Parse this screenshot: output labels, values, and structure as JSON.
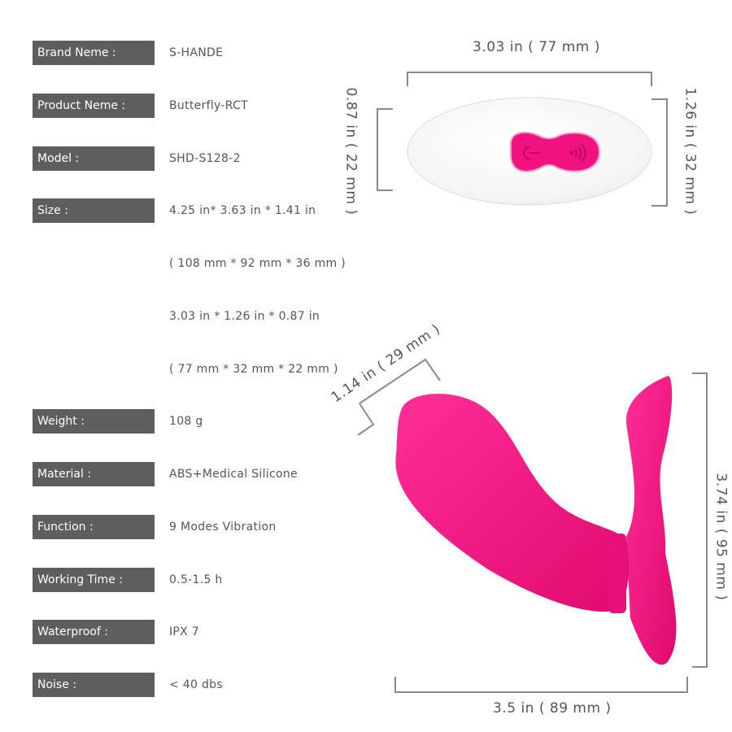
{
  "specs": [
    {
      "label": "Brand Neme :",
      "value": "S-HANDE"
    },
    {
      "label": "Product Neme :",
      "value": "Butterfly-RCT"
    },
    {
      "label": "Model :",
      "value": "SHD-S128-2"
    },
    {
      "label": "Size :",
      "value": "4.25 in* 3.63 in * 1.41 in"
    },
    {
      "label": "",
      "value": "( 108 mm * 92 mm * 36 mm )"
    },
    {
      "label": "",
      "value": "3.03 in * 1.26 in * 0.87 in"
    },
    {
      "label": "",
      "value": "( 77 mm * 32 mm * 22 mm )"
    },
    {
      "label": "Weight :",
      "value": "108 g"
    },
    {
      "label": "Material :",
      "value": "ABS+Medical Silicone"
    },
    {
      "label": "Function :",
      "value": "9 Modes Vibration"
    },
    {
      "label": "Working Time :",
      "value": "0.5-1.5 h"
    },
    {
      "label": "Waterproof :",
      "value": "IPX 7"
    },
    {
      "label": "Noise :",
      "value": "< 40 dbs"
    }
  ],
  "dimensions": {
    "remote_width": "3.03 in ( 77 mm )",
    "remote_depth": "0.87 in ( 22 mm )",
    "remote_height": "1.26 in ( 32 mm )",
    "toy_thickness": "1.14 in ( 29 mm )",
    "toy_height": "3.74 in ( 95 mm )",
    "toy_width": "3.5 in ( 89 mm )"
  },
  "colors": {
    "accent": "#f0127f",
    "label_bg": "#5e5e5e"
  },
  "icons": [
    "power-icon",
    "wireless-icon"
  ]
}
